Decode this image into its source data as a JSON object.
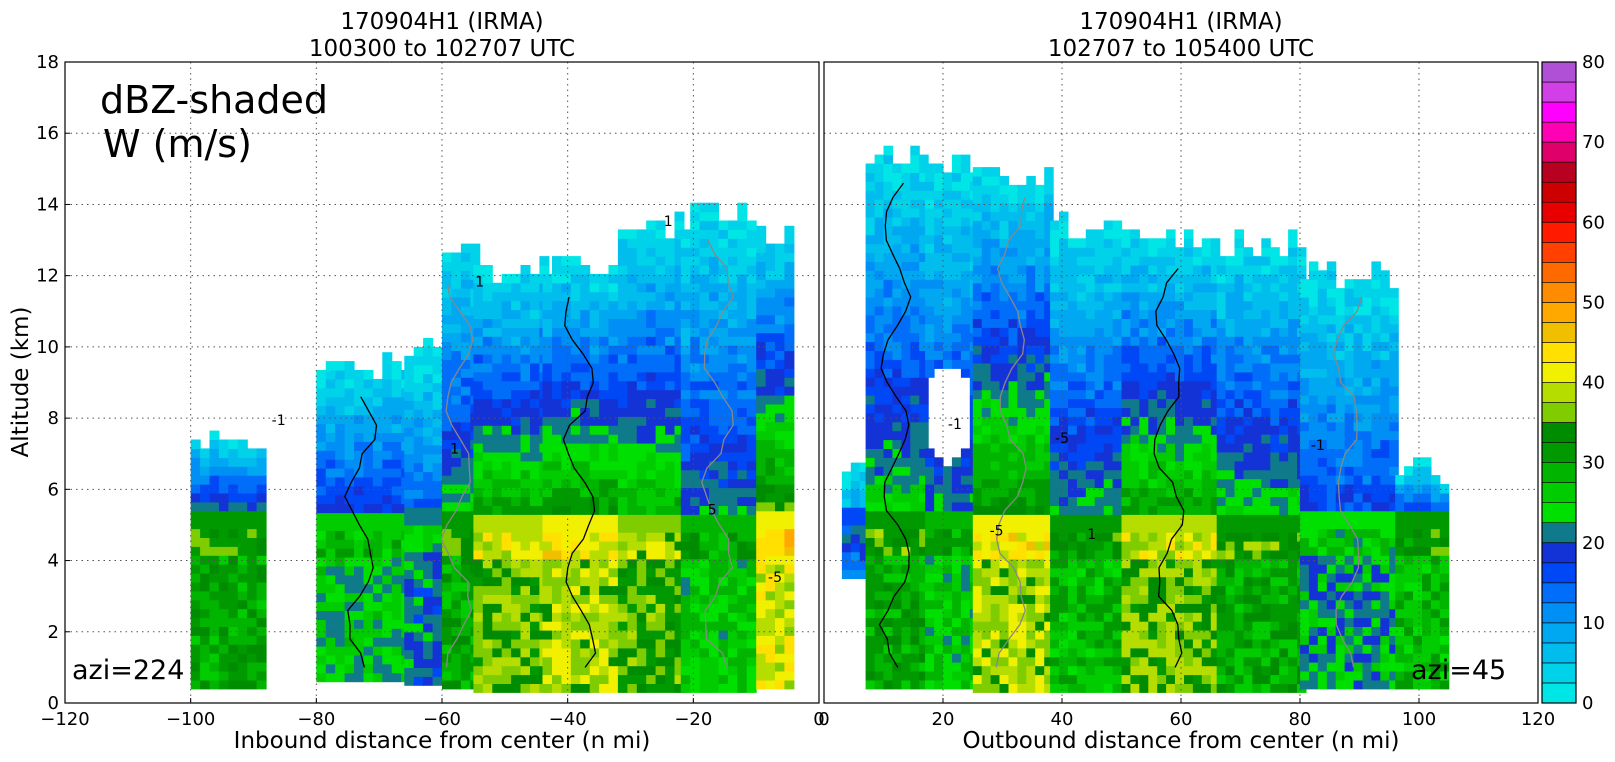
{
  "chart_data": [
    {
      "type": "heatmap",
      "title": "170904H1 (IRMA)",
      "subtitle": "100300 to 102707 UTC",
      "annotation_main": "dBZ-shaded",
      "annotation_sub": "W (m/s)",
      "annotation_azi": "azi=224",
      "xlabel": "Inbound distance from center (n mi)",
      "ylabel": "Altitude (km)",
      "xlim": [
        -120,
        0
      ],
      "ylim": [
        0,
        18
      ],
      "xticks": [
        -120,
        -100,
        -80,
        -60,
        -40,
        -20,
        0
      ],
      "yticks": [
        0,
        2,
        4,
        6,
        8,
        10,
        12,
        14,
        16,
        18
      ],
      "grid": true,
      "contour_labels": [
        {
          "x": -86,
          "y": 7.8,
          "text": "-1"
        },
        {
          "x": -58,
          "y": 7.0,
          "text": "1"
        },
        {
          "x": -17,
          "y": 5.3,
          "text": "5"
        },
        {
          "x": -7,
          "y": 3.4,
          "text": "-5"
        },
        {
          "x": -54,
          "y": 11.7,
          "text": "1"
        },
        {
          "x": -24,
          "y": 13.4,
          "text": "1"
        }
      ],
      "echo_columns": [
        {
          "x0": -100,
          "x1": -88,
          "top": 7.2,
          "base": 0.4,
          "core": 30
        },
        {
          "x0": -80,
          "x1": -66,
          "top": 9.4,
          "base": 0.6,
          "core": 24
        },
        {
          "x0": -66,
          "x1": -60,
          "top": 10.0,
          "base": 0.5,
          "core": 20
        },
        {
          "x0": -60,
          "x1": -55,
          "top": 12.6,
          "base": 0.4,
          "core": 30
        },
        {
          "x0": -55,
          "x1": -44,
          "top": 12.2,
          "base": 0.3,
          "core": 36
        },
        {
          "x0": -44,
          "x1": -32,
          "top": 12.3,
          "base": 0.3,
          "core": 38
        },
        {
          "x0": -32,
          "x1": -22,
          "top": 13.3,
          "base": 0.3,
          "core": 34
        },
        {
          "x0": -22,
          "x1": -10,
          "top": 13.6,
          "base": 0.3,
          "core": 26
        },
        {
          "x0": -10,
          "x1": -4,
          "top": 13.0,
          "base": 0.4,
          "core": 40
        }
      ]
    },
    {
      "type": "heatmap",
      "title": "170904H1 (IRMA)",
      "subtitle": "102707 to 105400 UTC",
      "annotation_azi": "azi=45",
      "xlabel": "Outbound distance from center (n mi)",
      "xlim": [
        0,
        120
      ],
      "ylim": [
        0,
        18
      ],
      "xticks": [
        0,
        20,
        40,
        60,
        80,
        100,
        120
      ],
      "grid": true,
      "contour_labels": [
        {
          "x": 22,
          "y": 7.7,
          "text": "-1"
        },
        {
          "x": 29,
          "y": 4.7,
          "text": "-5"
        },
        {
          "x": 40,
          "y": 7.3,
          "text": "-5"
        },
        {
          "x": 83,
          "y": 7.1,
          "text": "-1"
        },
        {
          "x": 45,
          "y": 4.6,
          "text": "1"
        }
      ],
      "echo_columns": [
        {
          "x0": 3,
          "x1": 7,
          "top": 6.2,
          "base": 3.5,
          "core": 14
        },
        {
          "x0": 7,
          "x1": 17,
          "top": 15.2,
          "base": 0.4,
          "core": 30
        },
        {
          "x0": 17,
          "x1": 25,
          "top": 15.1,
          "base": 0.4,
          "core": 26
        },
        {
          "x0": 25,
          "x1": 38,
          "top": 14.8,
          "base": 0.3,
          "core": 38
        },
        {
          "x0": 38,
          "x1": 50,
          "top": 13.4,
          "base": 0.3,
          "core": 28
        },
        {
          "x0": 50,
          "x1": 66,
          "top": 12.9,
          "base": 0.3,
          "core": 36
        },
        {
          "x0": 66,
          "x1": 80,
          "top": 12.8,
          "base": 0.3,
          "core": 30
        },
        {
          "x0": 80,
          "x1": 96,
          "top": 12.0,
          "base": 0.4,
          "core": 22
        },
        {
          "x0": 96,
          "x1": 105,
          "top": 6.3,
          "base": 0.4,
          "core": 28
        }
      ],
      "clear_holes": [
        {
          "x": 20,
          "y": 8.0,
          "rx": 4,
          "ry": 1.4
        }
      ]
    }
  ],
  "colorbar": {
    "min": 0,
    "max": 80,
    "step": 2.5,
    "tick_labels": [
      "0",
      "10",
      "20",
      "30",
      "40",
      "50",
      "60",
      "70",
      "80"
    ],
    "colors": [
      "#00e5e5",
      "#00d2ea",
      "#00bdee",
      "#00a8f2",
      "#0090f5",
      "#006ef8",
      "#0048f5",
      "#1433d6",
      "#0e7a8a",
      "#00e000",
      "#00cc00",
      "#00b400",
      "#009a00",
      "#008c00",
      "#7fcc00",
      "#b5dd00",
      "#f0f000",
      "#ffe000",
      "#f0c000",
      "#ffa800",
      "#ff8c00",
      "#ff6a00",
      "#ff4000",
      "#ff1a00",
      "#e80000",
      "#cc0000",
      "#b80020",
      "#e0006a",
      "#ff00b4",
      "#ff00ff",
      "#d040e6",
      "#b050d6",
      "#9048c0",
      "#603070",
      "#000000"
    ]
  }
}
